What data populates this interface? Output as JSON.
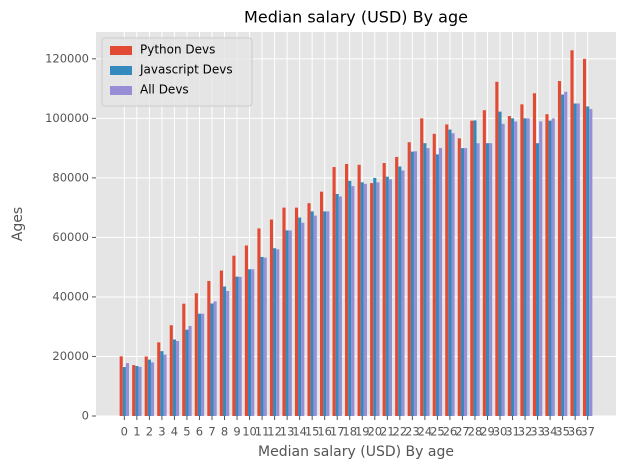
{
  "chart_data": {
    "type": "bar",
    "title": "Median salary (USD) By age",
    "x_label": "Median salary (USD) By age",
    "y_label": "Ages",
    "categories": [
      "0",
      "1",
      "2",
      "3",
      "4",
      "5",
      "6",
      "7",
      "8",
      "9",
      "10",
      "11",
      "12",
      "13",
      "14",
      "15",
      "16",
      "17",
      "18",
      "19",
      "20",
      "21",
      "22",
      "23",
      "24",
      "25",
      "26",
      "27",
      "28",
      "29",
      "30",
      "31",
      "32",
      "33",
      "34",
      "35",
      "36",
      "37"
    ],
    "series": [
      {
        "name": "Python Devs",
        "color": "#E24A33",
        "values": [
          20046,
          17100,
          20000,
          24744,
          30500,
          37732,
          41247,
          45372,
          48876,
          53850,
          57287,
          63016,
          65998,
          70003,
          70000,
          71496,
          75370,
          83640,
          84666,
          84392,
          78254,
          85000,
          87038,
          91991,
          100000,
          94796,
          97962,
          93302,
          99240,
          102736,
          112285,
          100771,
          104708,
          108423,
          101407,
          112542,
          122870,
          120000
        ]
      },
      {
        "name": "Javascript Devs",
        "color": "#348ABD",
        "values": [
          16446,
          16791,
          18942,
          21780,
          25704,
          29000,
          34372,
          37810,
          43515,
          46823,
          49293,
          53437,
          56373,
          62375,
          66674,
          68745,
          68746,
          74583,
          79000,
          78508,
          79996,
          80403,
          83820,
          88833,
          91660,
          87892,
          96243,
          90000,
          99313,
          91660,
          102264,
          100000,
          100000,
          91660,
          99240,
          108000,
          105000,
          104000
        ]
      },
      {
        "name": "All Devs",
        "color": "#988ED5",
        "values": [
          17784,
          16500,
          18012,
          20628,
          25206,
          30252,
          34368,
          38496,
          42000,
          46752,
          49320,
          53200,
          56000,
          62316,
          64928,
          67317,
          68748,
          73752,
          77232,
          78000,
          78508,
          79536,
          82488,
          88935,
          90000,
          90056,
          95000,
          90000,
          91633,
          91660,
          98150,
          98964,
          100000,
          98988,
          100000,
          108923,
          105000,
          103117
        ]
      }
    ],
    "ylim": [
      0,
      129014
    ],
    "yticks": [
      0,
      20000,
      40000,
      60000,
      80000,
      100000,
      120000
    ],
    "grid": true,
    "legend": "upper left"
  }
}
